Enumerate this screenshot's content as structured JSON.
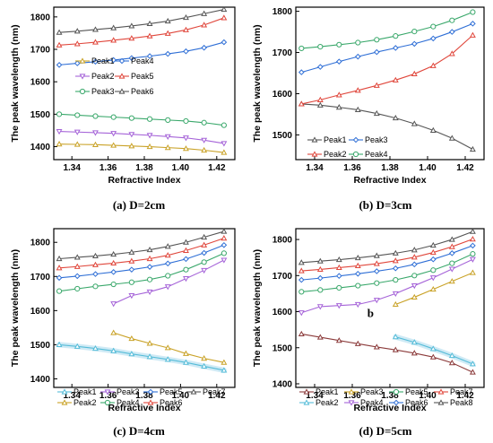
{
  "chart_data": [
    {
      "type": "line",
      "caption": "(a) D=2cm",
      "xlabel": "Refractive Index",
      "ylabel": "The peak wavelength (nm)",
      "xlim": [
        1.33,
        1.43
      ],
      "ylim": [
        1360,
        1830
      ],
      "xticks": [
        1.34,
        1.36,
        1.38,
        1.4,
        1.42
      ],
      "yticks": [
        1400,
        1500,
        1600,
        1700,
        1800
      ],
      "x": [
        1.333,
        1.343,
        1.353,
        1.363,
        1.373,
        1.383,
        1.393,
        1.403,
        1.413,
        1.424
      ],
      "legend_order": [
        "Peak1",
        "Peak4",
        "Peak2",
        "Peak5",
        "Peak3",
        "Peak6"
      ],
      "legend_position": "middle-left",
      "series": [
        {
          "name": "Peak1",
          "color": "#c9a227",
          "marker": "triangle",
          "values": [
            1408,
            1407,
            1406,
            1404,
            1402,
            1400,
            1397,
            1394,
            1389,
            1382
          ]
        },
        {
          "name": "Peak2",
          "color": "#a563d8",
          "marker": "triangle-down",
          "values": [
            1447,
            1445,
            1443,
            1441,
            1438,
            1435,
            1431,
            1427,
            1420,
            1410
          ]
        },
        {
          "name": "Peak3",
          "color": "#3aa86b",
          "marker": "circle",
          "values": [
            1500,
            1497,
            1494,
            1491,
            1488,
            1485,
            1482,
            1479,
            1474,
            1466
          ]
        },
        {
          "name": "Peak4",
          "color": "#2f6fd6",
          "marker": "diamond",
          "values": [
            1652,
            1657,
            1662,
            1667,
            1673,
            1679,
            1686,
            1694,
            1705,
            1722
          ]
        },
        {
          "name": "Peak5",
          "color": "#e0473c",
          "marker": "triangle",
          "values": [
            1713,
            1717,
            1722,
            1728,
            1734,
            1741,
            1749,
            1760,
            1775,
            1797
          ]
        },
        {
          "name": "Peak6",
          "color": "#555555",
          "marker": "triangle",
          "values": [
            1752,
            1756,
            1761,
            1766,
            1772,
            1779,
            1787,
            1798,
            1810,
            1823
          ]
        }
      ]
    },
    {
      "type": "line",
      "caption": "(b) D=3cm",
      "xlabel": "Refractive Index",
      "ylabel": "The peak wavelength (nm)",
      "xlim": [
        1.33,
        1.43
      ],
      "ylim": [
        1440,
        1810
      ],
      "xticks": [
        1.34,
        1.36,
        1.38,
        1.4,
        1.42
      ],
      "yticks": [
        1500,
        1600,
        1700,
        1800
      ],
      "x": [
        1.333,
        1.343,
        1.353,
        1.363,
        1.373,
        1.383,
        1.393,
        1.403,
        1.413,
        1.424
      ],
      "legend_order": [
        "Peak1",
        "Peak3",
        "Peak2",
        "Peak4"
      ],
      "legend_position": "bottom-left",
      "series": [
        {
          "name": "Peak1",
          "color": "#555555",
          "marker": "triangle",
          "values": [
            1575,
            1572,
            1567,
            1561,
            1552,
            1541,
            1527,
            1511,
            1492,
            1465
          ]
        },
        {
          "name": "Peak2",
          "color": "#e0473c",
          "marker": "triangle",
          "values": [
            1575,
            1585,
            1597,
            1608,
            1620,
            1633,
            1648,
            1668,
            1697,
            1742
          ]
        },
        {
          "name": "Peak3",
          "color": "#2f6fd6",
          "marker": "diamond",
          "values": [
            1652,
            1665,
            1678,
            1690,
            1701,
            1711,
            1721,
            1734,
            1750,
            1770
          ]
        },
        {
          "name": "Peak4",
          "color": "#3aa86b",
          "marker": "circle",
          "values": [
            1710,
            1714,
            1719,
            1724,
            1731,
            1740,
            1751,
            1763,
            1778,
            1798
          ]
        }
      ]
    },
    {
      "type": "line",
      "caption": "(c) D=4cm",
      "xlabel": "Refractive Index",
      "ylabel": "The peak wavelength (nm)",
      "xlim": [
        1.33,
        1.43
      ],
      "ylim": [
        1375,
        1840
      ],
      "xticks": [
        1.34,
        1.36,
        1.38,
        1.4,
        1.42
      ],
      "yticks": [
        1400,
        1500,
        1600,
        1700,
        1800
      ],
      "legend_order": [
        "Peak1",
        "Peak3",
        "Peak5",
        "Peak7",
        "Peak2",
        "Peak4",
        "Peak6"
      ],
      "legend_position": "bottom",
      "series": [
        {
          "name": "Peak1",
          "color": "#55bcd8",
          "marker": "triangle",
          "x": [
            1.333,
            1.343,
            1.353,
            1.363,
            1.373,
            1.383,
            1.393,
            1.403,
            1.413,
            1.424
          ],
          "values": [
            1500,
            1495,
            1489,
            1482,
            1473,
            1465,
            1457,
            1448,
            1437,
            1425
          ]
        },
        {
          "name": "Peak2",
          "color": "#c9a227",
          "marker": "triangle",
          "x": [
            1.363,
            1.373,
            1.383,
            1.393,
            1.403,
            1.413,
            1.424
          ],
          "values": [
            1535,
            1518,
            1504,
            1491,
            1474,
            1460,
            1448
          ]
        },
        {
          "name": "Peak3",
          "color": "#a563d8",
          "marker": "triangle-down",
          "x": [
            1.363,
            1.373,
            1.383,
            1.393,
            1.403,
            1.413,
            1.424
          ],
          "values": [
            1620,
            1644,
            1655,
            1670,
            1694,
            1718,
            1748
          ]
        },
        {
          "name": "Peak4",
          "color": "#3aa86b",
          "marker": "circle",
          "x": [
            1.333,
            1.343,
            1.353,
            1.363,
            1.373,
            1.383,
            1.393,
            1.403,
            1.413,
            1.424
          ],
          "values": [
            1657,
            1664,
            1671,
            1677,
            1683,
            1691,
            1702,
            1720,
            1742,
            1768
          ]
        },
        {
          "name": "Peak5",
          "color": "#2f6fd6",
          "marker": "diamond",
          "x": [
            1.333,
            1.343,
            1.353,
            1.363,
            1.373,
            1.383,
            1.393,
            1.403,
            1.413,
            1.424
          ],
          "values": [
            1696,
            1701,
            1707,
            1713,
            1720,
            1728,
            1738,
            1751,
            1769,
            1792
          ]
        },
        {
          "name": "Peak6",
          "color": "#e0473c",
          "marker": "triangle",
          "x": [
            1.333,
            1.343,
            1.353,
            1.363,
            1.373,
            1.383,
            1.393,
            1.403,
            1.413,
            1.424
          ],
          "values": [
            1725,
            1729,
            1734,
            1739,
            1745,
            1752,
            1762,
            1776,
            1792,
            1812
          ]
        },
        {
          "name": "Peak7",
          "color": "#555555",
          "marker": "triangle",
          "x": [
            1.333,
            1.343,
            1.353,
            1.363,
            1.373,
            1.383,
            1.393,
            1.403,
            1.413,
            1.424
          ],
          "values": [
            1752,
            1756,
            1760,
            1765,
            1771,
            1778,
            1788,
            1800,
            1815,
            1832
          ]
        }
      ]
    },
    {
      "type": "line",
      "caption": "(d) D=5cm",
      "xlabel": "Refractive Index",
      "ylabel": "The peak wavelength (nm)",
      "xlim": [
        1.33,
        1.43
      ],
      "ylim": [
        1390,
        1830
      ],
      "xticks": [
        1.34,
        1.36,
        1.38,
        1.4,
        1.42
      ],
      "yticks": [
        1400,
        1500,
        1600,
        1700,
        1800
      ],
      "annotation": "b",
      "legend_order": [
        "Peak1",
        "Peak3",
        "Peak5",
        "Peak7",
        "Peak2",
        "Peak4",
        "Peak6",
        "Peak8"
      ],
      "legend_position": "bottom",
      "series": [
        {
          "name": "Peak1",
          "color": "#8b3a3a",
          "marker": "triangle",
          "x": [
            1.333,
            1.343,
            1.353,
            1.363,
            1.373,
            1.383,
            1.393,
            1.403,
            1.413,
            1.424
          ],
          "values": [
            1538,
            1529,
            1520,
            1511,
            1502,
            1494,
            1485,
            1474,
            1458,
            1432
          ]
        },
        {
          "name": "Peak2",
          "color": "#55bcd8",
          "marker": "triangle",
          "x": [
            1.383,
            1.393,
            1.403,
            1.413,
            1.424
          ],
          "values": [
            1530,
            1515,
            1497,
            1478,
            1455
          ]
        },
        {
          "name": "Peak3",
          "color": "#c9a227",
          "marker": "triangle",
          "x": [
            1.383,
            1.393,
            1.403,
            1.413,
            1.424
          ],
          "values": [
            1620,
            1640,
            1662,
            1684,
            1708
          ]
        },
        {
          "name": "Peak4",
          "color": "#a563d8",
          "marker": "triangle-down",
          "x": [
            1.333,
            1.343,
            1.353,
            1.363,
            1.373,
            1.383,
            1.393,
            1.403,
            1.413,
            1.424
          ],
          "values": [
            1597,
            1614,
            1617,
            1620,
            1632,
            1650,
            1672,
            1694,
            1718,
            1745
          ]
        },
        {
          "name": "Peak5",
          "color": "#3aa86b",
          "marker": "circle",
          "x": [
            1.333,
            1.343,
            1.353,
            1.363,
            1.373,
            1.383,
            1.393,
            1.403,
            1.413,
            1.424
          ],
          "values": [
            1655,
            1660,
            1666,
            1672,
            1679,
            1688,
            1700,
            1715,
            1734,
            1760
          ]
        },
        {
          "name": "Peak6",
          "color": "#2f6fd6",
          "marker": "diamond",
          "x": [
            1.333,
            1.343,
            1.353,
            1.363,
            1.373,
            1.383,
            1.393,
            1.403,
            1.413,
            1.424
          ],
          "values": [
            1688,
            1693,
            1699,
            1705,
            1712,
            1720,
            1731,
            1745,
            1762,
            1783
          ]
        },
        {
          "name": "Peak7",
          "color": "#e0473c",
          "marker": "triangle",
          "x": [
            1.333,
            1.343,
            1.353,
            1.363,
            1.373,
            1.383,
            1.393,
            1.403,
            1.413,
            1.424
          ],
          "values": [
            1713,
            1717,
            1722,
            1727,
            1733,
            1741,
            1751,
            1764,
            1780,
            1801
          ]
        },
        {
          "name": "Peak8",
          "color": "#555555",
          "marker": "triangle",
          "x": [
            1.333,
            1.343,
            1.353,
            1.363,
            1.373,
            1.383,
            1.393,
            1.403,
            1.413,
            1.424
          ],
          "values": [
            1736,
            1740,
            1744,
            1749,
            1755,
            1762,
            1771,
            1784,
            1800,
            1822
          ]
        }
      ]
    }
  ]
}
